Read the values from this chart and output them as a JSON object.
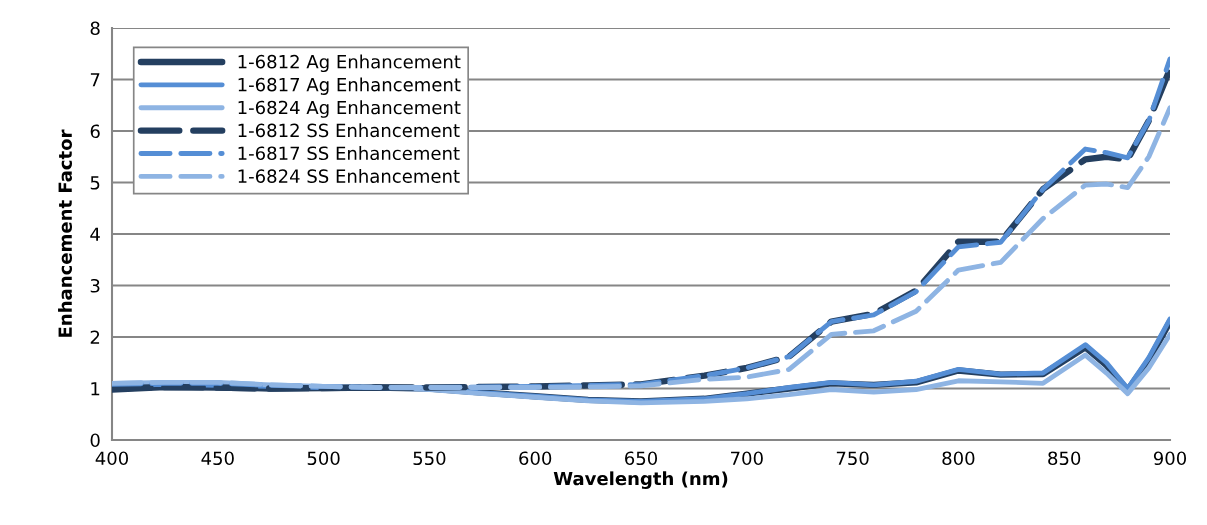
{
  "chart_data": {
    "type": "line",
    "xlabel": "Wavelength (nm)",
    "ylabel": "Enhancement Factor",
    "x": [
      400,
      425,
      450,
      475,
      500,
      525,
      550,
      575,
      600,
      625,
      650,
      680,
      700,
      720,
      740,
      760,
      780,
      800,
      820,
      840,
      860,
      870,
      880,
      890,
      900
    ],
    "xlim": [
      400,
      900
    ],
    "xticks": [
      400,
      450,
      500,
      550,
      600,
      650,
      700,
      750,
      800,
      850,
      900
    ],
    "ylim": [
      0,
      8
    ],
    "yticks": [
      0,
      1,
      2,
      3,
      4,
      5,
      6,
      7,
      8
    ],
    "grid": "y",
    "legend": "top left",
    "series": [
      {
        "name": "1-6812 Ag Enhancement",
        "color": "#243f60",
        "line_style": "solid",
        "values": [
          0.98,
          1.03,
          1.02,
          1.0,
          1.01,
          1.02,
          1.0,
          0.92,
          0.85,
          0.78,
          0.75,
          0.8,
          0.9,
          1.0,
          1.1,
          1.07,
          1.12,
          1.35,
          1.27,
          1.28,
          1.8,
          1.45,
          0.97,
          1.55,
          2.3
        ]
      },
      {
        "name": "1-6817 Ag Enhancement",
        "color": "#558ed5",
        "line_style": "solid",
        "values": [
          1.05,
          1.08,
          1.06,
          1.04,
          1.02,
          1.02,
          1.0,
          0.92,
          0.85,
          0.78,
          0.75,
          0.8,
          0.9,
          1.02,
          1.12,
          1.07,
          1.14,
          1.37,
          1.28,
          1.3,
          1.85,
          1.5,
          1.0,
          1.6,
          2.35
        ]
      },
      {
        "name": "1-6824 Ag Enhancement",
        "color": "#8eb4e3",
        "line_style": "solid",
        "values": [
          1.1,
          1.12,
          1.12,
          1.07,
          1.04,
          1.02,
          0.98,
          0.9,
          0.83,
          0.76,
          0.72,
          0.75,
          0.8,
          0.88,
          0.98,
          0.93,
          0.98,
          1.15,
          1.13,
          1.1,
          1.65,
          1.3,
          0.9,
          1.4,
          2.05
        ]
      },
      {
        "name": "1-6812 SS Enhancement",
        "color": "#243f60",
        "line_style": "dashed",
        "values": [
          1.0,
          1.03,
          1.02,
          1.0,
          1.01,
          1.02,
          1.02,
          1.03,
          1.04,
          1.06,
          1.08,
          1.25,
          1.4,
          1.62,
          2.3,
          2.45,
          2.9,
          3.85,
          3.85,
          4.87,
          5.45,
          5.5,
          5.45,
          6.2,
          7.2
        ]
      },
      {
        "name": "1-6817 SS Enhancement",
        "color": "#558ed5",
        "line_style": "dashed",
        "values": [
          1.08,
          1.1,
          1.1,
          1.06,
          1.04,
          1.02,
          1.02,
          1.03,
          1.04,
          1.06,
          1.08,
          1.25,
          1.4,
          1.62,
          2.3,
          2.43,
          2.88,
          3.75,
          3.84,
          4.87,
          5.65,
          5.58,
          5.48,
          6.2,
          7.4
        ]
      },
      {
        "name": "1-6824 SS Enhancement",
        "color": "#8eb4e3",
        "line_style": "dashed",
        "values": [
          1.1,
          1.12,
          1.12,
          1.07,
          1.04,
          1.02,
          1.02,
          1.02,
          1.02,
          1.03,
          1.05,
          1.18,
          1.22,
          1.37,
          2.05,
          2.12,
          2.5,
          3.3,
          3.45,
          4.3,
          4.95,
          4.97,
          4.9,
          5.5,
          6.45
        ]
      }
    ]
  }
}
